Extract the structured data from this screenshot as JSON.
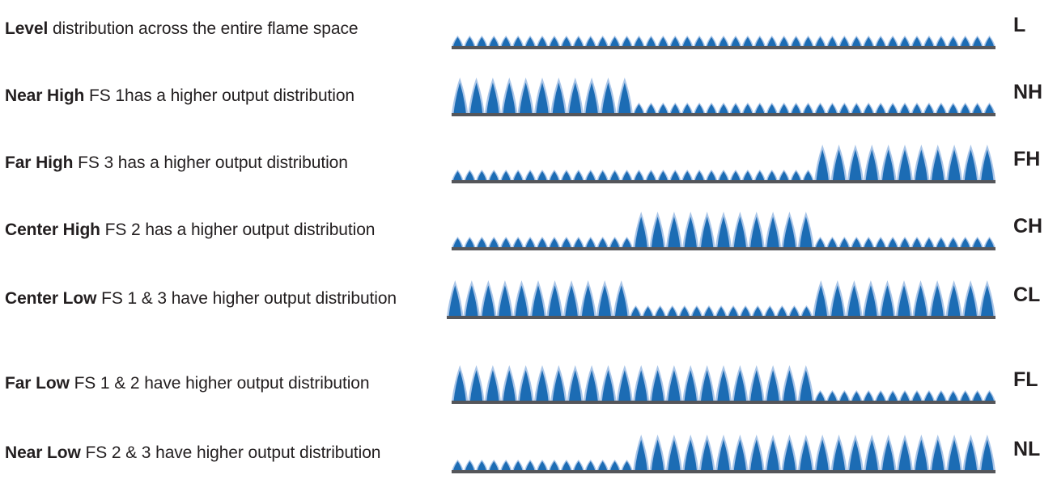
{
  "colors": {
    "flame_outer": "#a9c5e8",
    "flame_inner": "#1c6cb4",
    "base": "#55565a",
    "text": "#231f20"
  },
  "flame_sections": [
    "FS 1",
    "FS 2",
    "FS 3"
  ],
  "patterns": [
    {
      "id": "level",
      "name": "Level",
      "description": "distribution across the entire flame space",
      "code": "L",
      "sections_high": [
        false,
        false,
        false
      ]
    },
    {
      "id": "near-high",
      "name": "Near High",
      "description": "FS 1has a higher output distribution",
      "code": "NH",
      "sections_high": [
        true,
        false,
        false
      ]
    },
    {
      "id": "far-high",
      "name": "Far High",
      "description": "FS 3 has a higher output distribution",
      "code": "FH",
      "sections_high": [
        false,
        false,
        true
      ]
    },
    {
      "id": "center-high",
      "name": "Center High",
      "description": "FS 2 has a higher output distribution",
      "code": "CH",
      "sections_high": [
        false,
        true,
        false
      ]
    },
    {
      "id": "center-low",
      "name": "Center Low",
      "description": "FS 1 & 3 have higher output distribution",
      "code": "CL",
      "sections_high": [
        true,
        false,
        true
      ]
    },
    {
      "id": "far-low",
      "name": "Far Low",
      "description": "FS 1 & 2 have higher output distribution",
      "code": "FL",
      "sections_high": [
        true,
        true,
        false
      ]
    },
    {
      "id": "near-low",
      "name": "Near Low",
      "description": "FS 2 & 3 have higher output distribution",
      "code": "NL",
      "sections_high": [
        false,
        true,
        true
      ]
    }
  ]
}
